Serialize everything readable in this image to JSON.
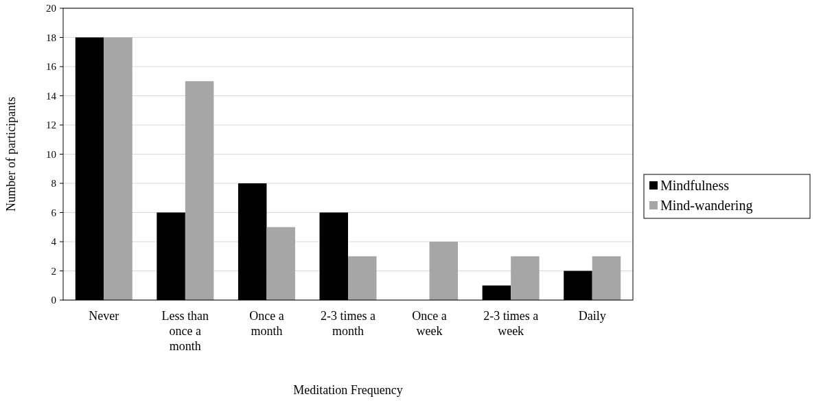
{
  "chart_data": {
    "type": "bar",
    "xlabel": "Meditation Frequency",
    "ylabel": "Number of participants",
    "categories": [
      "Never",
      "Less than once a month",
      "Once a month",
      "2-3 times a month",
      "Once a week",
      "2-3 times a week",
      "Daily"
    ],
    "series": [
      {
        "name": "Mindfulness",
        "color": "#000000",
        "values": [
          18,
          6,
          8,
          6,
          0,
          1,
          2
        ]
      },
      {
        "name": "Mind-wandering",
        "color": "#a6a6a6",
        "values": [
          18,
          15,
          5,
          3,
          4,
          3,
          3
        ]
      }
    ],
    "ylim": [
      0,
      20
    ],
    "yticks": [
      0,
      2,
      4,
      6,
      8,
      10,
      12,
      14,
      16,
      18,
      20
    ],
    "grid": "y",
    "legend": "right"
  }
}
